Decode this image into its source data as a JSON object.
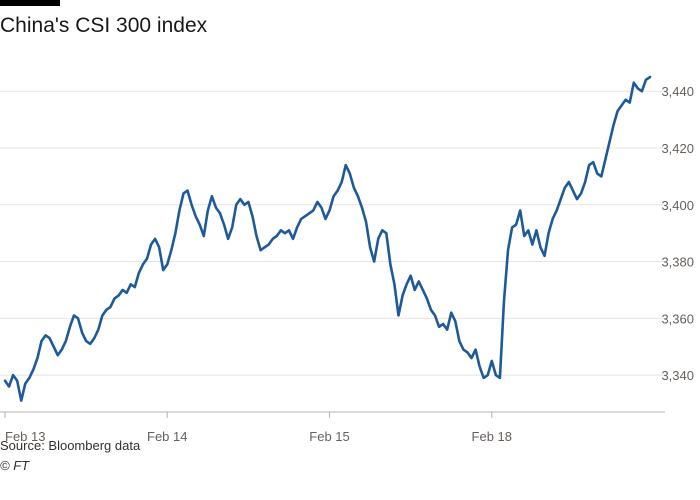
{
  "page": {
    "title": "China's CSI 300 index",
    "source": "Source: Bloomberg data",
    "credit": "© FT"
  },
  "colors": {
    "line": "#1e5a99",
    "grid": "#e8e3df",
    "axis": "#b8b1ab",
    "text": "#66605c"
  },
  "chart_data": {
    "type": "line",
    "title": "China's CSI 300 index",
    "xlabel": "",
    "ylabel": "",
    "x_tick_labels": [
      "Feb 13",
      "Feb 14",
      "Feb 15",
      "Feb 18"
    ],
    "x_tick_positions": [
      0,
      40,
      80,
      120
    ],
    "y_ticks": [
      3340,
      3360,
      3380,
      3400,
      3420,
      3440
    ],
    "y_tick_labels": [
      "3,340",
      "3,360",
      "3,380",
      "3,400",
      "3,420",
      "3,440"
    ],
    "xlim": [
      0,
      159
    ],
    "ylim": [
      3327,
      3451
    ],
    "grid": true,
    "series": [
      {
        "values": [
          3338,
          3336,
          3340,
          3338,
          3331,
          3337,
          3339,
          3342,
          3346,
          3352,
          3354,
          3353,
          3350,
          3347,
          3349,
          3352,
          3357,
          3361,
          3360,
          3355,
          3352,
          3351,
          3353,
          3356,
          3361,
          3363,
          3364,
          3367,
          3368,
          3370,
          3369,
          3372,
          3371,
          3376,
          3379,
          3381,
          3386,
          3388,
          3385,
          3377,
          3379,
          3384,
          3390,
          3398,
          3404,
          3405,
          3400,
          3396,
          3393,
          3389,
          3398,
          3403,
          3399,
          3397,
          3393,
          3388,
          3392,
          3400,
          3402,
          3400,
          3401,
          3396,
          3389,
          3384,
          3385,
          3386,
          3388,
          3389,
          3391,
          3390,
          3391,
          3388,
          3392,
          3395,
          3396,
          3397,
          3398,
          3401,
          3399,
          3395,
          3398,
          3403,
          3405,
          3408,
          3414,
          3411,
          3406,
          3403,
          3399,
          3394,
          3385,
          3380,
          3388,
          3391,
          3390,
          3379,
          3372,
          3361,
          3368,
          3372,
          3375,
          3370,
          3373,
          3370,
          3367,
          3363,
          3361,
          3357,
          3358,
          3356,
          3362,
          3359,
          3352,
          3349,
          3348,
          3346,
          3349,
          3343,
          3339,
          3340,
          3345,
          3340,
          3339,
          3366,
          3384,
          3392,
          3393,
          3398,
          3389,
          3391,
          3386,
          3391,
          3385,
          3382,
          3390,
          3395,
          3398,
          3402,
          3406,
          3408,
          3405,
          3402,
          3404,
          3408,
          3414,
          3415,
          3411,
          3410,
          3416,
          3422,
          3428,
          3433,
          3435,
          3437,
          3436,
          3443,
          3441,
          3440,
          3444,
          3445
        ]
      }
    ]
  }
}
